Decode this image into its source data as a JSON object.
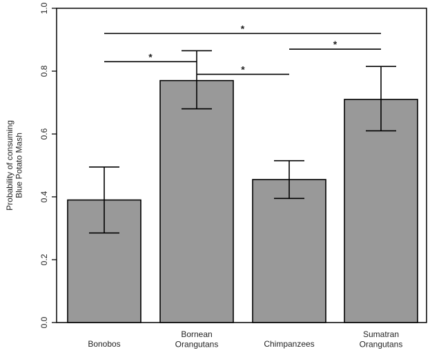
{
  "chart_data": {
    "type": "bar",
    "title": "",
    "ylabel": [
      "Probability of consuming",
      "Blue Potato Mash"
    ],
    "xlabel": "",
    "ylim": [
      0,
      1.0
    ],
    "yticks": [
      "0.0",
      "0.2",
      "0.4",
      "0.6",
      "0.8",
      "1.0"
    ],
    "categories": [
      [
        "Bonobos"
      ],
      [
        "Bornean",
        "Orangutans"
      ],
      [
        "Chimpanzees"
      ],
      [
        "Sumatran",
        "Orangutans"
      ]
    ],
    "values": [
      0.39,
      0.77,
      0.455,
      0.71
    ],
    "error_low": [
      0.285,
      0.68,
      0.395,
      0.61
    ],
    "error_high": [
      0.495,
      0.865,
      0.515,
      0.815
    ],
    "bar_color": "#999999",
    "grid": false,
    "significance": [
      {
        "from": 0,
        "to": 3,
        "y": 0.92,
        "label": "*"
      },
      {
        "from": 0,
        "to": 1,
        "y": 0.83,
        "label": "*"
      },
      {
        "from": 1,
        "to": 2,
        "y": 0.79,
        "label": "*"
      },
      {
        "from": 2,
        "to": 3,
        "y": 0.87,
        "label": "*"
      }
    ]
  }
}
